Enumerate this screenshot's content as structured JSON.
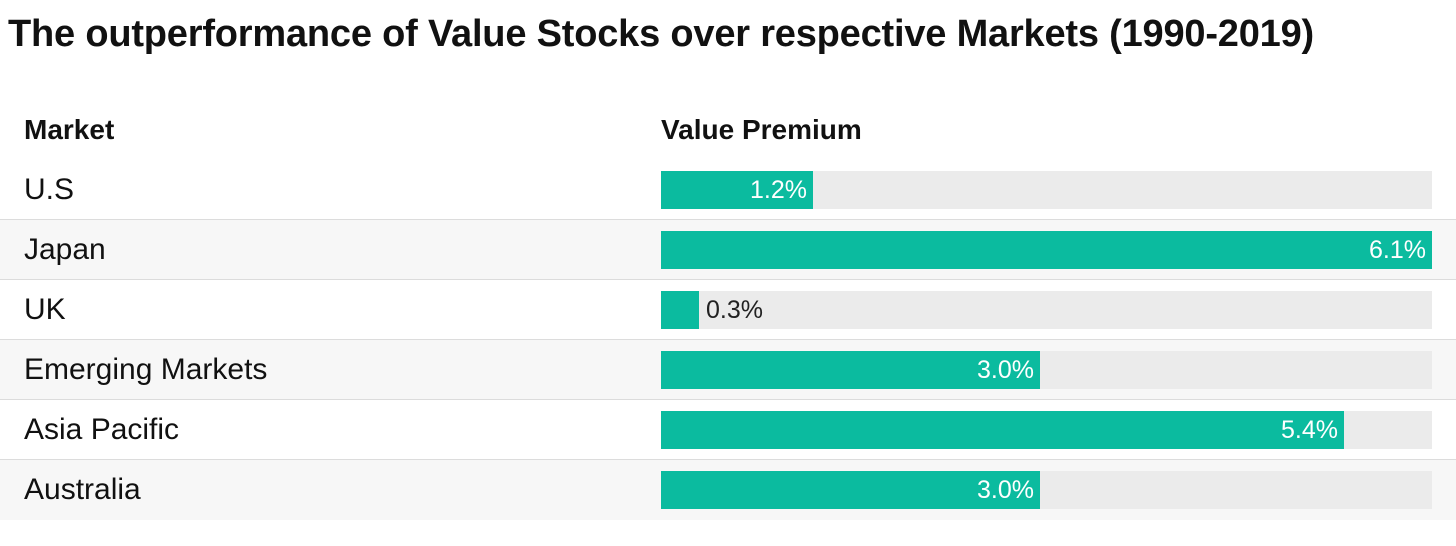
{
  "title": "The outperformance of Value Stocks over respective Markets (1990-2019)",
  "headers": {
    "market": "Market",
    "value": "Value Premium"
  },
  "colors": {
    "bar": "#0bbb9f",
    "track": "#ebebeb"
  },
  "chart_data": {
    "type": "bar",
    "orientation": "horizontal",
    "title": "The outperformance of Value Stocks over respective Markets (1990-2019)",
    "xlim": [
      0,
      6.1
    ],
    "unit": "%",
    "categories": [
      "U.S",
      "Japan",
      "UK",
      "Emerging Markets",
      "Asia Pacific",
      "Australia"
    ],
    "values": [
      1.2,
      6.1,
      0.3,
      3.0,
      5.4,
      3.0
    ],
    "labels": [
      "1.2%",
      "6.1%",
      "0.3%",
      "3.0%",
      "5.4%",
      "3.0%"
    ]
  }
}
